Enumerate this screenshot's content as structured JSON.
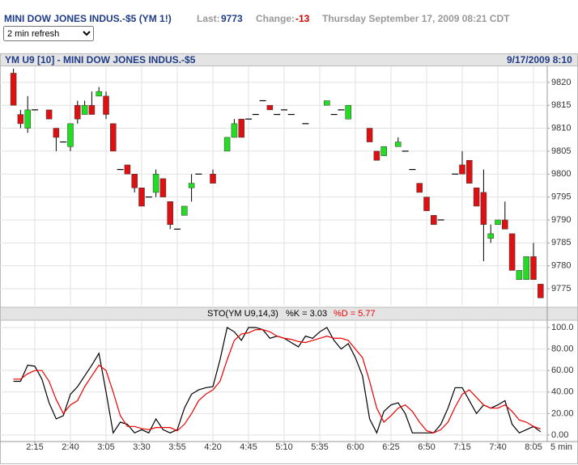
{
  "header": {
    "symbol": "MINI DOW JONES INDUS.-$5 (YM 1!)",
    "last_label": "Last:",
    "last": "9773",
    "change_label": "Change:",
    "change": "-13",
    "timestamp": "Thursday September 17, 2009 08:21 CDT",
    "refresh": "2 min refresh"
  },
  "chart_data": [
    {
      "type": "candlestick",
      "title": "YM U9 [10] - MINI DOW JONES INDUS.-$5",
      "subtitle": "9/17/2009 8:10",
      "categories": [
        null,
        null,
        null,
        "2:15",
        null,
        null,
        null,
        null,
        "2:40",
        null,
        null,
        null,
        null,
        "3:05",
        null,
        null,
        null,
        null,
        "3:30",
        null,
        null,
        null,
        null,
        "3:55",
        null,
        null,
        null,
        null,
        "4:20",
        null,
        null,
        null,
        null,
        "4:45",
        null,
        null,
        null,
        null,
        "5:10",
        null,
        null,
        null,
        null,
        "5:35",
        null,
        null,
        null,
        null,
        "6:00",
        null,
        null,
        null,
        null,
        "6:25",
        null,
        null,
        null,
        null,
        "6:50",
        null,
        null,
        null,
        null,
        "7:15",
        null,
        null,
        null,
        null,
        "7:40",
        null,
        null,
        null,
        null,
        "8:05",
        null
      ],
      "open": [
        9822,
        9813,
        9810,
        9814,
        null,
        9814,
        9810,
        9807,
        9806,
        9815,
        9813,
        9815,
        9817,
        9817,
        9811,
        9801,
        9802,
        9800,
        9797,
        9795,
        9796,
        9799,
        9794,
        9788,
        9791,
        9797,
        9800,
        null,
        9800,
        null,
        9805,
        9808,
        9812,
        9812,
        9813,
        9816,
        9815,
        9813,
        9814,
        9813,
        null,
        9811,
        null,
        null,
        9815,
        9813,
        9814,
        9812,
        null,
        null,
        9810,
        9805,
        9804,
        null,
        9806,
        9805,
        9801,
        9798,
        9795,
        9791,
        9790,
        null,
        9800,
        9802,
        9803,
        9797,
        9796,
        9786,
        9789,
        9790,
        9787,
        9777,
        9777,
        9782,
        9776
      ],
      "high": [
        9823,
        9814,
        9817,
        9814,
        null,
        9814,
        9810,
        9807,
        9811,
        9816,
        9816,
        9818,
        9819,
        9818,
        9811,
        9801,
        9802,
        9800,
        9797,
        9795,
        9801,
        9799,
        9794,
        9788,
        9793,
        9800,
        9800,
        null,
        9801,
        null,
        9808,
        9812,
        9812,
        9812,
        9813,
        9816,
        9815,
        9813,
        9814,
        9813,
        null,
        9811,
        null,
        null,
        9816,
        9813,
        9814,
        9815,
        null,
        null,
        9810,
        9805,
        9806,
        null,
        9808,
        9805,
        9801,
        9798,
        9795,
        9791,
        9790,
        null,
        9800,
        9805,
        9803,
        9797,
        9801,
        9789,
        9790,
        9794,
        9787,
        9779,
        9782,
        9785,
        9776
      ],
      "low": [
        9815,
        9810,
        9809,
        9814,
        null,
        9812,
        9805,
        9807,
        9805,
        9811,
        9813,
        9813,
        9817,
        9812,
        9805,
        9801,
        9800,
        9796,
        9793,
        9795,
        9795,
        9795,
        9788,
        9788,
        9791,
        9794,
        9800,
        null,
        9798,
        null,
        9805,
        9808,
        9808,
        9812,
        9813,
        9816,
        9814,
        9813,
        9814,
        9813,
        null,
        9811,
        null,
        null,
        9815,
        9813,
        9814,
        9812,
        null,
        null,
        9807,
        9803,
        9804,
        null,
        9806,
        9805,
        9801,
        9796,
        9792,
        9789,
        9790,
        null,
        9800,
        9800,
        9798,
        9793,
        9781,
        9785,
        9789,
        9788,
        9779,
        9777,
        9777,
        9777,
        9773
      ],
      "close": [
        9815,
        9811,
        9814,
        9814,
        null,
        9812,
        9808,
        9807,
        9811,
        9812,
        9815,
        9813,
        9818,
        9813,
        9805,
        9801,
        9800,
        9797,
        9793,
        9795,
        9800,
        9795,
        9789,
        9788,
        9793,
        9798,
        9800,
        null,
        9798,
        null,
        9808,
        9811,
        9808,
        9812,
        9813,
        9816,
        9814,
        9813,
        9814,
        9813,
        null,
        9811,
        null,
        null,
        9816,
        9813,
        9814,
        9815,
        null,
        null,
        9807,
        9803,
        9806,
        null,
        9807,
        9805,
        9801,
        9796,
        9792,
        9789,
        9790,
        null,
        9800,
        9800,
        9798,
        9793,
        9789,
        9787,
        9790,
        9788,
        9779,
        9779,
        9782,
        9777,
        9773
      ],
      "up_color": "#22dd22",
      "down_color": "#dd1111",
      "ylim": [
        9771.3,
        9823.5
      ],
      "yticks": [
        9775,
        9780,
        9785,
        9790,
        9795,
        9800,
        9805,
        9810,
        9815,
        9820
      ],
      "grid": true
    },
    {
      "type": "line",
      "title": "STO(YM U9,14,3)",
      "xlabel": "5 min",
      "series": [
        {
          "name": "%K = 3.03",
          "color": "#000000",
          "values": [
            50,
            50,
            65,
            64,
            52,
            30,
            15,
            18,
            38,
            45,
            55,
            65,
            76,
            40,
            2,
            12,
            10,
            2,
            5,
            2,
            15,
            5,
            2,
            5,
            25,
            38,
            42,
            44,
            45,
            70,
            100,
            96,
            88,
            100,
            100,
            98,
            90,
            92,
            90,
            86,
            82,
            92,
            90,
            96,
            100,
            88,
            80,
            85,
            72,
            55,
            15,
            2,
            22,
            28,
            30,
            20,
            2,
            2,
            2,
            2,
            10,
            25,
            44,
            44,
            32,
            20,
            28,
            25,
            28,
            32,
            10,
            2,
            5,
            8,
            3.03
          ]
        },
        {
          "name": "%D = 5.77",
          "color": "#ee0000",
          "values": [
            52,
            52,
            57,
            60,
            60,
            50,
            33,
            20,
            28,
            32,
            45,
            55,
            65,
            60,
            40,
            18,
            8,
            8,
            6,
            5,
            7,
            7,
            7,
            4,
            10,
            20,
            32,
            38,
            42,
            50,
            70,
            88,
            94,
            95,
            98,
            98,
            96,
            92,
            90,
            89,
            87,
            86,
            88,
            90,
            92,
            90,
            90,
            88,
            80,
            72,
            50,
            25,
            12,
            18,
            25,
            28,
            22,
            12,
            4,
            2,
            5,
            12,
            26,
            38,
            42,
            35,
            28,
            25,
            25,
            28,
            22,
            14,
            12,
            8,
            5.77
          ]
        }
      ],
      "ylim": [
        -5.3,
        106
      ],
      "yticks": [
        {
          "value": 0,
          "label": "0.00"
        },
        {
          "value": 20,
          "label": "20.00"
        },
        {
          "value": 40,
          "label": "40.00"
        },
        {
          "value": 60,
          "label": "60.00"
        },
        {
          "value": 80,
          "label": "80.00"
        },
        {
          "value": 100,
          "label": "100.0"
        }
      ],
      "grid": true
    }
  ]
}
